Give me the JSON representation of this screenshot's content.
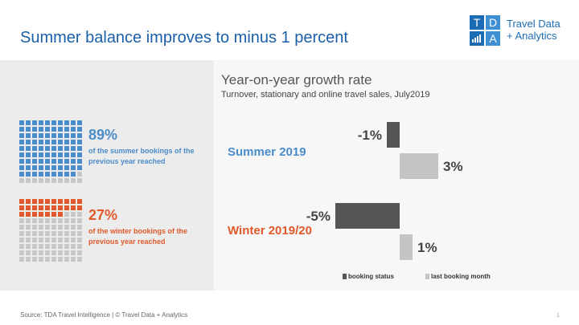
{
  "header": {
    "title": "Summer balance improves to minus 1 percent"
  },
  "logo": {
    "letters": [
      "T",
      "D",
      "",
      "A"
    ],
    "line1": "Travel Data",
    "line2": "+ Analytics"
  },
  "colors": {
    "summer": "#4a8cc9",
    "winter": "#e05a2b",
    "waffle_empty": "#c8c8c8",
    "booking_status": "#555555",
    "last_booking_month": "#c4c4c4",
    "logo_blue": "#1b6cb5"
  },
  "summer_stat": {
    "percent": 89,
    "label": "89%",
    "text": "of the summer bookings of the previous year reached"
  },
  "winter_stat": {
    "percent": 27,
    "label": "27%",
    "text": "of the winter bookings of the previous year reached"
  },
  "chart_data": {
    "type": "bar",
    "orientation": "horizontal",
    "title": "Year-on-year growth rate",
    "subtitle": "Turnover, stationary and online travel sales, July2019",
    "categories": [
      "Summer 2019",
      "Winter 2019/20"
    ],
    "series": [
      {
        "name": "booking status",
        "values": [
          -1,
          -5
        ],
        "labels": [
          "-1%",
          "-5%"
        ]
      },
      {
        "name": "last booking month",
        "values": [
          3,
          1
        ],
        "labels": [
          "3%",
          "1%"
        ]
      }
    ],
    "legend_position": "bottom"
  },
  "footer": {
    "source": "Source: TDA Travel Intelligence  |  © Travel Data + Analytics",
    "page": "1"
  }
}
